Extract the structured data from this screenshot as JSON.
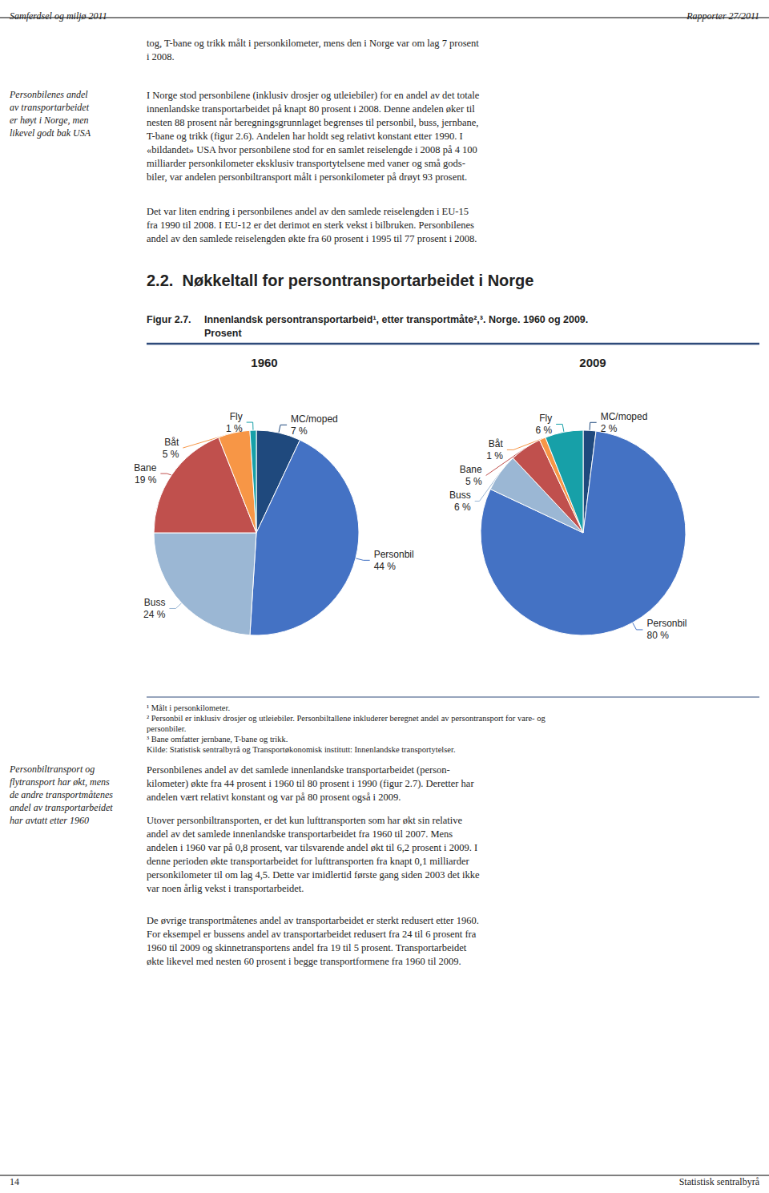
{
  "chart_data": [
    {
      "type": "pie",
      "title": "1960",
      "categories": [
        "MC/moped",
        "Personbil",
        "Buss",
        "Bane",
        "Båt",
        "Fly"
      ],
      "values": [
        7,
        44,
        24,
        19,
        5,
        1
      ],
      "value_labels": [
        "7 %",
        "44 %",
        "24 %",
        "19 %",
        "5 %",
        "1 %"
      ],
      "colors": [
        "#1F497D",
        "#4472C4",
        "#9BB7D4",
        "#C0504D",
        "#F79646",
        "#17A0A8"
      ],
      "data_labels": true
    },
    {
      "type": "pie",
      "title": "2009",
      "categories": [
        "MC/moped",
        "Personbil",
        "Buss",
        "Bane",
        "Båt",
        "Fly"
      ],
      "values": [
        2,
        80,
        6,
        5,
        1,
        6
      ],
      "value_labels": [
        "2 %",
        "80 %",
        "6 %",
        "5 %",
        "1 %",
        "6 %"
      ],
      "colors": [
        "#1F497D",
        "#4472C4",
        "#9BB7D4",
        "#C0504D",
        "#F79646",
        "#17A0A8"
      ],
      "data_labels": true
    }
  ],
  "title": "Innenlandsk persontransportarbeid¹, etter transportmåte²,³. Norge. 1960 og 2009.",
  "subtitle": "Prosent",
  "annotations": [
    "Samferdsel og miljø 2011",
    "Rapporter 27/2011",
    "14",
    "Statistisk sentralbyrå",
    "tog, T-bane og trikk målt i personkilometer, mens den i Norge var om lag 7 prosent\ni 2008.",
    "Personbilenes andel\nav transportarbeidet\ner høyt i Norge, men\nlikevel godt bak USA",
    "I Norge stod personbilene (inklusiv drosjer og utleiebiler) for en andel av det totale\ninnenlandske transportarbeidet på knapt 80 prosent i 2008. Denne andelen øker til\nnesten 88 prosent når beregningsgrunnlaget begrenses til personbil, buss, jernbane,\nT-bane og trikk (figur 2.6). Andelen har holdt seg relativt konstant etter 1990. I\n«bildandet» USA hvor personbilene stod for en samlet reiselengde i 2008 på 4 100\nmilliarder personkilometer eksklusiv transportytelsene med vaner og små gods-\nbiler, var andelen personbiltransport målt i personkilometer på drøyt 93 prosent.",
    "Det var liten endring i personbilenes andel av den samlede reiselengden i EU-15\nfra 1990 til 2008. I EU-12 er det derimot en sterk vekst i bilbruken. Personbilenes\nandel av den samlede reiselengden økte fra 60 prosent i 1995 til 77 prosent i 2008.",
    "2.2.  Nøkkeltall for persontransportarbeidet i Norge",
    "Figur 2.7.",
    "¹ Målt i personkilometer.",
    "² Personbil er inklusiv drosjer og utleiebiler. Personbiltallene inkluderer beregnet andel av persontransport for vare- og",
    "personbiler.",
    "³ Bane omfatter jernbane, T-bane og trikk.",
    "Kilde: Statistisk sentralbyrå og Transportøkonomisk institutt: Innenlandske transportytelser.",
    "Personbiltransport og\nflytransport har økt, mens\nde andre transportmåtenes\nandel av transportarbeidet\nhar avtatt etter 1960",
    "Personbilenes andel av det samlede innenlandske transportarbeidet (person-\nkilometer) økte fra 44 prosent i 1960 til 80 prosent i 1990 (figur 2.7). Deretter har\nandelen vært relativt konstant og var på 80 prosent også i 2009.",
    "Utover personbiltransporten, er det kun lufttransporten som har økt sin relative\nandel av det samlede innenlandske transportarbeidet fra 1960 til 2007. Mens\nandelen i 1960 var på 0,8 prosent, var tilsvarende andel økt til 6,2 prosent i 2009. I\ndenne perioden økte transportarbeidet for lufttransporten fra knapt 0,1 milliarder\npersonkilometer til om lag 4,5. Dette var imidlertid første gang siden 2003 det ikke\nvar noen årlig vekst i transportarbeidet.",
    "De øvrige transportmåtenes andel av transportarbeidet er sterkt redusert etter 1960.\nFor eksempel er bussens andel av transportarbeidet redusert fra 24 til 6 prosent fra\n1960 til 2009 og skinnetransportens andel fra 19 til 5 prosent. Transportarbeidet\nøkte likevel med nesten 60 prosent i begge transportformene fra 1960 til 2009."
  ]
}
